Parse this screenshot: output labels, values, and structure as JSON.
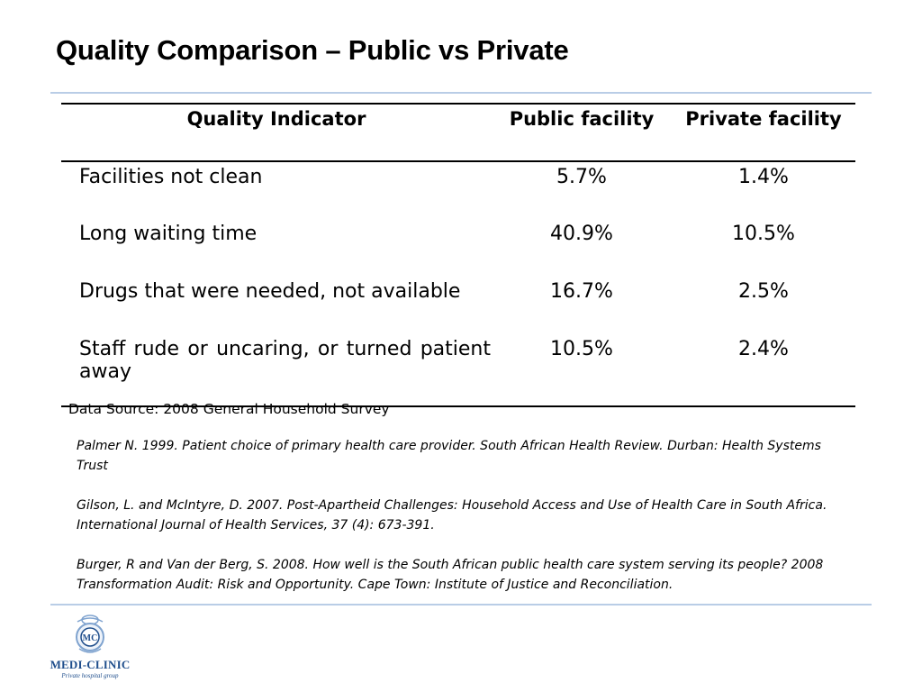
{
  "title": "Quality Comparison – Public vs Private",
  "table": {
    "headers": {
      "indicator": "Quality Indicator",
      "public": "Public facility",
      "private": "Private facility"
    },
    "rows": [
      {
        "indicator": "Facilities not clean",
        "public": "5.7%",
        "private": "1.4%"
      },
      {
        "indicator": "Long waiting time",
        "public": "40.9%",
        "private": "10.5%"
      },
      {
        "indicator": "Drugs that were needed, not available",
        "public": "16.7%",
        "private": "2.5%"
      },
      {
        "indicator": "Staff rude or uncaring, or turned patient away",
        "public": "10.5%",
        "private": "2.4%"
      }
    ]
  },
  "source": "Data Source: 2008 General Household Survey",
  "references": [
    "Palmer N. 1999. Patient choice of primary health care provider. South African Health Review. Durban: Health Systems Trust",
    "Gilson, L. and McIntyre, D. 2007. Post-Apartheid Challenges: Household Access and Use of Health Care in South Africa. International Journal of Health Services, 37 (4): 673-391.",
    "Burger, R and Van der Berg, S. 2008. How well is the South African public health care system serving its people? 2008 Transformation Audit: Risk and Opportunity. Cape Town: Institute of Justice and Reconciliation."
  ],
  "logo": {
    "name": "MEDI-CLINIC",
    "tagline": "Private hospital group",
    "emblem_text": "MC",
    "icon": "medi-clinic-emblem",
    "color": "#1f4e8c"
  },
  "colors": {
    "rule": "#b9cde6",
    "text": "#000000",
    "brand": "#1f4e8c"
  }
}
